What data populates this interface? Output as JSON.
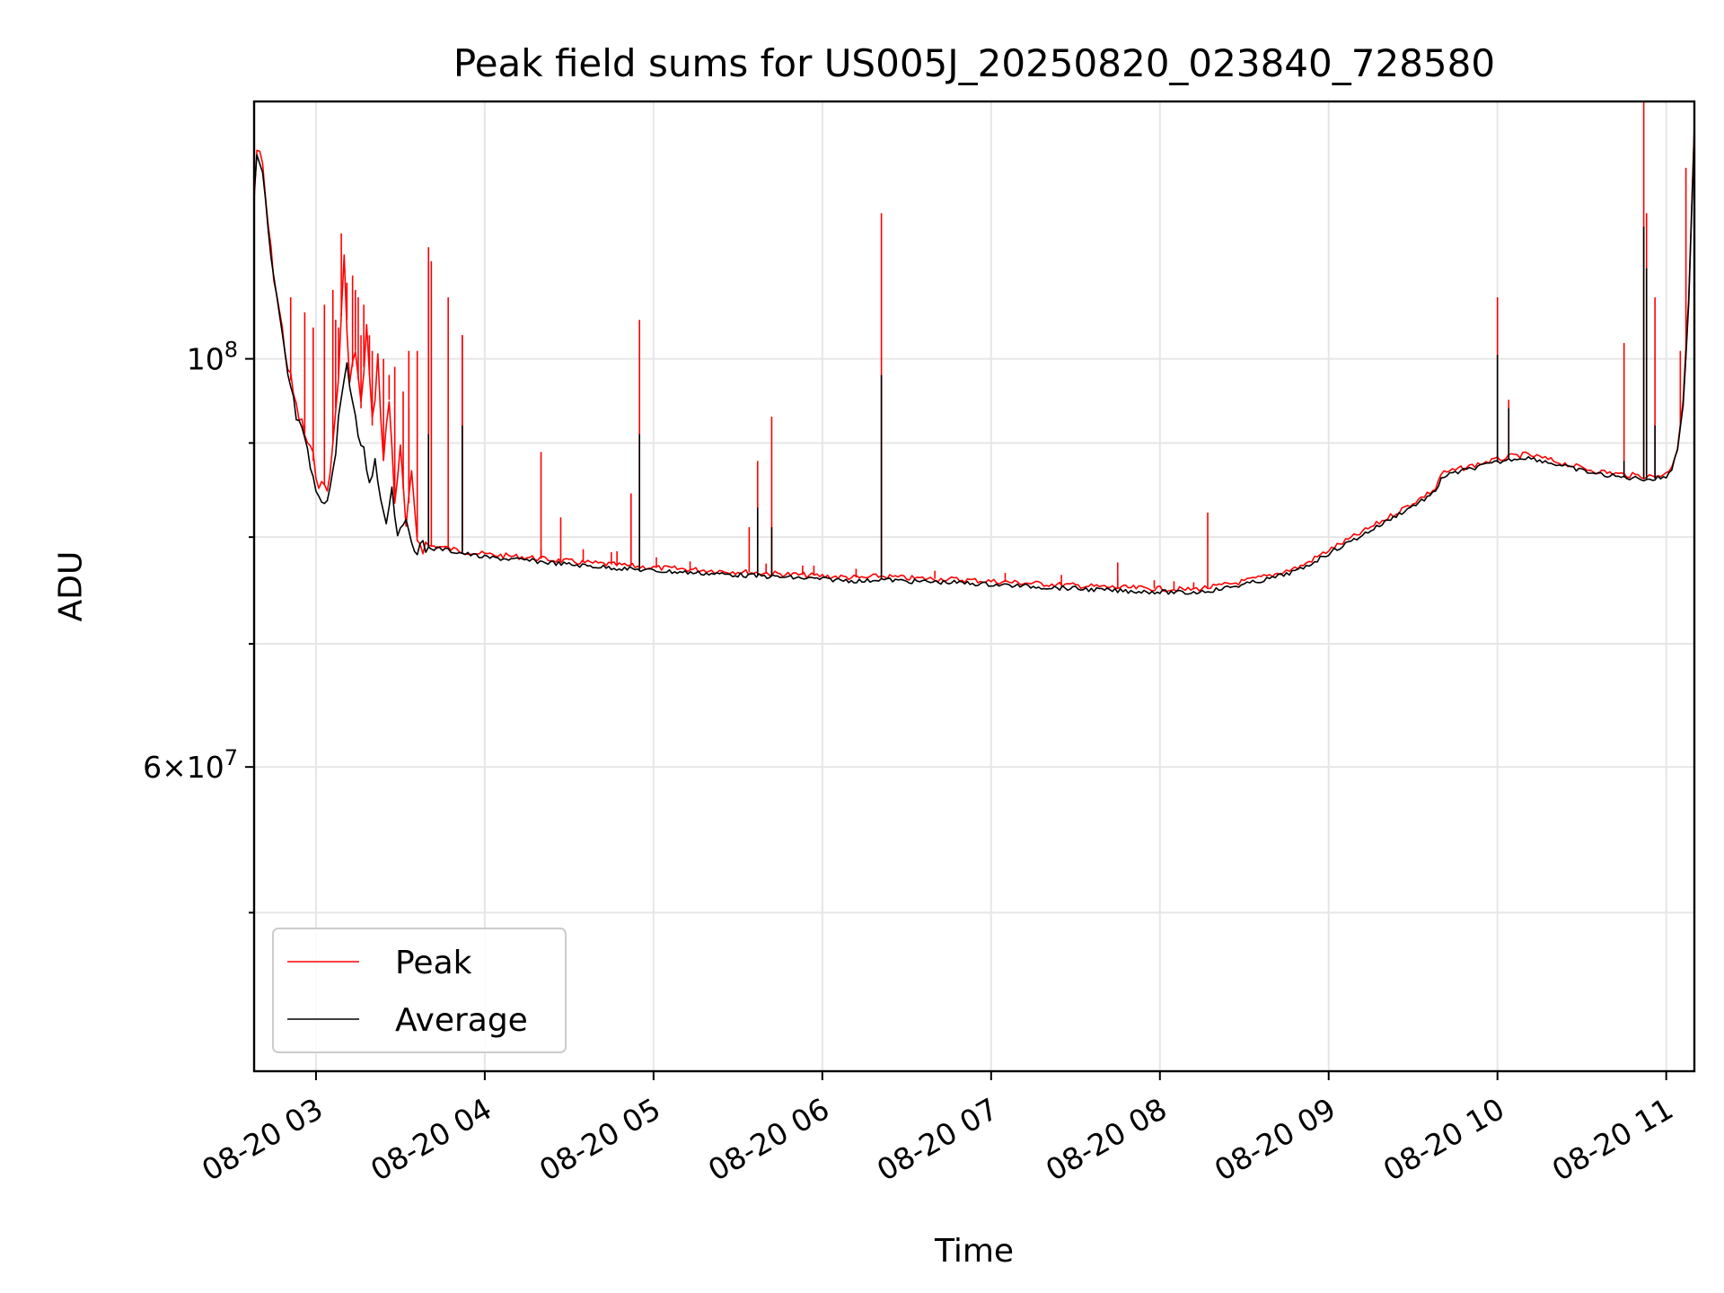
{
  "chart_data": {
    "type": "line",
    "title": "Peak field sums for US005J_20250820_023840_728580",
    "xlabel": "Time",
    "ylabel": "ADU",
    "x_axis_type": "time",
    "xlim": [
      "08-20 02:38",
      "08-20 11:10"
    ],
    "y_scale": "log",
    "ylim": [
      41000000,
      138000000
    ],
    "grid": true,
    "legend_position": "lower-left",
    "x_ticks": [
      {
        "value": "08-20 03:00",
        "label": "08-20 03"
      },
      {
        "value": "08-20 04:00",
        "label": "08-20 04"
      },
      {
        "value": "08-20 05:00",
        "label": "08-20 05"
      },
      {
        "value": "08-20 06:00",
        "label": "08-20 06"
      },
      {
        "value": "08-20 07:00",
        "label": "08-20 07"
      },
      {
        "value": "08-20 08:00",
        "label": "08-20 08"
      },
      {
        "value": "08-20 09:00",
        "label": "08-20 09"
      },
      {
        "value": "08-20 10:00",
        "label": "08-20 10"
      },
      {
        "value": "08-20 11:00",
        "label": "08-20 11"
      }
    ],
    "y_major_ticks": [
      {
        "value": 60000000,
        "base": "6",
        "times": "×",
        "mantissa": "10",
        "exp": "7"
      },
      {
        "value": 100000000,
        "base": "",
        "times": "",
        "mantissa": "10",
        "exp": "8"
      }
    ],
    "y_minor_gridlines": [
      50000000,
      70000000,
      80000000,
      90000000
    ],
    "series": [
      {
        "name": "Peak",
        "color": "#ff0000",
        "points": [
          [
            "08-20 02:38",
            122000000
          ],
          [
            "08-20 02:39",
            130000000
          ],
          [
            "08-20 02:41",
            127000000
          ],
          [
            "08-20 02:44",
            114000000
          ],
          [
            "08-20 02:47",
            106000000
          ],
          [
            "08-20 02:50",
            99000000
          ],
          [
            "08-20 02:53",
            94000000
          ],
          [
            "08-20 02:56",
            91000000
          ],
          [
            "08-20 02:59",
            88000000
          ],
          [
            "08-20 03:02",
            85000000
          ],
          [
            "08-20 03:05",
            86000000
          ],
          [
            "08-20 03:08",
            98000000
          ],
          [
            "08-20 03:10",
            113000000
          ],
          [
            "08-20 03:12",
            97000000
          ],
          [
            "08-20 03:14",
            101000000
          ],
          [
            "08-20 03:16",
            94000000
          ],
          [
            "08-20 03:18",
            104000000
          ],
          [
            "08-20 03:20",
            92000000
          ],
          [
            "08-20 03:22",
            100000000
          ],
          [
            "08-20 03:24",
            88000000
          ],
          [
            "08-20 03:26",
            95000000
          ],
          [
            "08-20 03:28",
            84000000
          ],
          [
            "08-20 03:30",
            89000000
          ],
          [
            "08-20 03:32",
            81000000
          ],
          [
            "08-20 03:34",
            86000000
          ],
          [
            "08-20 03:36",
            80000000
          ],
          [
            "08-20 03:38",
            79200000
          ],
          [
            "08-20 03:45",
            79000000
          ],
          [
            "08-20 03:52",
            78600000
          ],
          [
            "08-20 04:00",
            78300000
          ],
          [
            "08-20 04:15",
            78000000
          ],
          [
            "08-20 04:30",
            77600000
          ],
          [
            "08-20 04:45",
            77300000
          ],
          [
            "08-20 05:00",
            77000000
          ],
          [
            "08-20 05:15",
            76800000
          ],
          [
            "08-20 05:30",
            76600000
          ],
          [
            "08-20 05:45",
            76400000
          ],
          [
            "08-20 06:00",
            76200000
          ],
          [
            "08-20 06:15",
            76000000
          ],
          [
            "08-20 06:20",
            76200000
          ],
          [
            "08-20 06:30",
            76000000
          ],
          [
            "08-20 06:45",
            75900000
          ],
          [
            "08-20 07:00",
            75700000
          ],
          [
            "08-20 07:15",
            75500000
          ],
          [
            "08-20 07:30",
            75300000
          ],
          [
            "08-20 07:45",
            75100000
          ],
          [
            "08-20 08:00",
            75000000
          ],
          [
            "08-20 08:10",
            74900000
          ],
          [
            "08-20 08:20",
            75200000
          ],
          [
            "08-20 08:30",
            75700000
          ],
          [
            "08-20 08:40",
            76300000
          ],
          [
            "08-20 08:50",
            77100000
          ],
          [
            "08-20 09:00",
            78700000
          ],
          [
            "08-20 09:10",
            80200000
          ],
          [
            "08-20 09:20",
            81800000
          ],
          [
            "08-20 09:30",
            83500000
          ],
          [
            "08-20 09:38",
            85000000
          ],
          [
            "08-20 09:40",
            86600000
          ],
          [
            "08-20 09:45",
            87000000
          ],
          [
            "08-20 09:55",
            87800000
          ],
          [
            "08-20 10:05",
            88500000
          ],
          [
            "08-20 10:10",
            88700000
          ],
          [
            "08-20 10:15",
            88400000
          ],
          [
            "08-20 10:25",
            87600000
          ],
          [
            "08-20 10:35",
            86900000
          ],
          [
            "08-20 10:45",
            86500000
          ],
          [
            "08-20 10:55",
            86300000
          ],
          [
            "08-20 11:00",
            86600000
          ],
          [
            "08-20 11:02",
            87500000
          ],
          [
            "08-20 11:04",
            89500000
          ],
          [
            "08-20 11:06",
            95000000
          ],
          [
            "08-20 11:08",
            108000000
          ],
          [
            "08-20 11:09",
            121000000
          ],
          [
            "08-20 11:10",
            134000000
          ]
        ],
        "spikes": [
          [
            "08-20 02:51",
            108000000
          ],
          [
            "08-20 02:56",
            106000000
          ],
          [
            "08-20 02:59",
            104000000
          ],
          [
            "08-20 03:03",
            107000000
          ],
          [
            "08-20 03:06",
            109000000
          ],
          [
            "08-20 03:07",
            105000000
          ],
          [
            "08-20 03:08",
            104000000
          ],
          [
            "08-20 03:09",
            117000000
          ],
          [
            "08-20 03:11",
            110000000
          ],
          [
            "08-20 03:13",
            111000000
          ],
          [
            "08-20 03:14",
            109000000
          ],
          [
            "08-20 03:15",
            108000000
          ],
          [
            "08-20 03:16",
            103000000
          ],
          [
            "08-20 03:17",
            107000000
          ],
          [
            "08-20 03:18",
            104000000
          ],
          [
            "08-20 03:19",
            103000000
          ],
          [
            "08-20 03:20",
            101000000
          ],
          [
            "08-20 03:22",
            99000000
          ],
          [
            "08-20 03:24",
            100000000
          ],
          [
            "08-20 03:26",
            98000000
          ],
          [
            "08-20 03:28",
            99000000
          ],
          [
            "08-20 03:31",
            96000000
          ],
          [
            "08-20 03:33",
            94000000
          ],
          [
            "08-20 03:36",
            101000000
          ],
          [
            "08-20 03:41",
            113000000
          ],
          [
            "08-20 03:47",
            108000000
          ],
          [
            "08-20 03:52",
            103000000
          ],
          [
            "08-20 04:20",
            78800000
          ],
          [
            "08-20 04:35",
            78800000
          ],
          [
            "08-20 04:45",
            78500000
          ],
          [
            "08-20 04:47",
            78600000
          ],
          [
            "08-20 05:01",
            78000000
          ],
          [
            "08-20 05:13",
            77600000
          ],
          [
            "08-20 05:40",
            77400000
          ],
          [
            "08-20 05:53",
            77200000
          ],
          [
            "08-20 05:57",
            77200000
          ],
          [
            "08-20 06:12",
            76900000
          ],
          [
            "08-20 06:40",
            76700000
          ],
          [
            "08-20 07:05",
            76500000
          ],
          [
            "08-20 07:25",
            76300000
          ],
          [
            "08-20 07:45",
            76000000
          ],
          [
            "08-20 07:58",
            75800000
          ],
          [
            "08-20 08:05",
            75700000
          ],
          [
            "08-20 08:12",
            75600000
          ]
        ],
        "big_spikes": [
          [
            "08-20 03:33",
            101000000
          ],
          [
            "08-20 03:40",
            115000000
          ],
          [
            "08-20 03:52",
            103000000
          ],
          [
            "08-20 04:20",
            89000000
          ],
          [
            "08-20 04:27",
            82000000
          ],
          [
            "08-20 04:52",
            84500000
          ],
          [
            "08-20 04:55",
            105000000
          ],
          [
            "08-20 05:34",
            81000000
          ],
          [
            "08-20 05:37",
            88000000
          ],
          [
            "08-20 05:42",
            93000000
          ],
          [
            "08-20 06:21",
            120000000
          ],
          [
            "08-20 07:45",
            77500000
          ],
          [
            "08-20 08:17",
            82500000
          ],
          [
            "08-20 10:00",
            108000000
          ],
          [
            "08-20 10:04",
            95000000
          ],
          [
            "08-20 10:45",
            102000000
          ],
          [
            "08-20 10:52",
            138000000
          ],
          [
            "08-20 10:53",
            120000000
          ],
          [
            "08-20 10:56",
            108000000
          ],
          [
            "08-20 11:05",
            101000000
          ],
          [
            "08-20 11:07",
            127000000
          ]
        ]
      },
      {
        "name": "Average",
        "color": "#000000",
        "points": [
          [
            "08-20 02:38",
            122000000
          ],
          [
            "08-20 02:39",
            129000000
          ],
          [
            "08-20 02:41",
            126000000
          ],
          [
            "08-20 02:44",
            113000000
          ],
          [
            "08-20 02:47",
            105000000
          ],
          [
            "08-20 02:50",
            98000000
          ],
          [
            "08-20 02:53",
            93000000
          ],
          [
            "08-20 02:56",
            90000000
          ],
          [
            "08-20 02:59",
            86000000
          ],
          [
            "08-20 03:01",
            83500000
          ],
          [
            "08-20 03:03",
            84000000
          ],
          [
            "08-20 03:05",
            85000000
          ],
          [
            "08-20 03:07",
            89000000
          ],
          [
            "08-20 03:09",
            96000000
          ],
          [
            "08-20 03:11",
            99000000
          ],
          [
            "08-20 03:13",
            94000000
          ],
          [
            "08-20 03:15",
            91000000
          ],
          [
            "08-20 03:17",
            89000000
          ],
          [
            "08-20 03:19",
            86000000
          ],
          [
            "08-20 03:21",
            88000000
          ],
          [
            "08-20 03:23",
            84000000
          ],
          [
            "08-20 03:25",
            82000000
          ],
          [
            "08-20 03:27",
            85000000
          ],
          [
            "08-20 03:29",
            80500000
          ],
          [
            "08-20 03:31",
            82000000
          ],
          [
            "08-20 03:33",
            80000000
          ],
          [
            "08-20 03:36",
            79000000
          ],
          [
            "08-20 03:45",
            78800000
          ],
          [
            "08-20 03:52",
            78400000
          ],
          [
            "08-20 04:00",
            78000000
          ],
          [
            "08-20 04:15",
            77700000
          ],
          [
            "08-20 04:30",
            77300000
          ],
          [
            "08-20 04:45",
            77000000
          ],
          [
            "08-20 05:00",
            76700000
          ],
          [
            "08-20 05:15",
            76500000
          ],
          [
            "08-20 05:30",
            76300000
          ],
          [
            "08-20 05:45",
            76100000
          ],
          [
            "08-20 06:00",
            75900000
          ],
          [
            "08-20 06:15",
            75700000
          ],
          [
            "08-20 06:20",
            75900000
          ],
          [
            "08-20 06:30",
            75700000
          ],
          [
            "08-20 06:45",
            75600000
          ],
          [
            "08-20 07:00",
            75400000
          ],
          [
            "08-20 07:15",
            75200000
          ],
          [
            "08-20 07:30",
            75000000
          ],
          [
            "08-20 07:45",
            74800000
          ],
          [
            "08-20 08:00",
            74700000
          ],
          [
            "08-20 08:10",
            74600000
          ],
          [
            "08-20 08:20",
            74900000
          ],
          [
            "08-20 08:30",
            75400000
          ],
          [
            "08-20 08:40",
            76000000
          ],
          [
            "08-20 08:50",
            76800000
          ],
          [
            "08-20 09:00",
            78400000
          ],
          [
            "08-20 09:10",
            79900000
          ],
          [
            "08-20 09:20",
            81500000
          ],
          [
            "08-20 09:30",
            83200000
          ],
          [
            "08-20 09:38",
            84600000
          ],
          [
            "08-20 09:40",
            86200000
          ],
          [
            "08-20 09:45",
            86700000
          ],
          [
            "08-20 09:55",
            87500000
          ],
          [
            "08-20 10:05",
            88200000
          ],
          [
            "08-20 10:10",
            88400000
          ],
          [
            "08-20 10:15",
            88100000
          ],
          [
            "08-20 10:25",
            87300000
          ],
          [
            "08-20 10:35",
            86600000
          ],
          [
            "08-20 10:45",
            86200000
          ],
          [
            "08-20 10:55",
            86000000
          ],
          [
            "08-20 11:00",
            86300000
          ],
          [
            "08-20 11:02",
            87200000
          ],
          [
            "08-20 11:04",
            89200000
          ],
          [
            "08-20 11:06",
            94500000
          ],
          [
            "08-20 11:08",
            107000000
          ],
          [
            "08-20 11:09",
            120000000
          ],
          [
            "08-20 11:10",
            133000000
          ]
        ],
        "big_spikes": [
          [
            "08-20 03:40",
            91000000
          ],
          [
            "08-20 03:52",
            92000000
          ],
          [
            "08-20 04:55",
            91000000
          ],
          [
            "08-20 05:37",
            83000000
          ],
          [
            "08-20 05:42",
            81000000
          ],
          [
            "08-20 06:21",
            98000000
          ],
          [
            "08-20 10:00",
            100500000
          ],
          [
            "08-20 10:04",
            94000000
          ],
          [
            "08-20 10:45",
            88000000
          ],
          [
            "08-20 10:52",
            118000000
          ],
          [
            "08-20 10:53",
            112000000
          ],
          [
            "08-20 10:56",
            92000000
          ]
        ]
      }
    ]
  }
}
